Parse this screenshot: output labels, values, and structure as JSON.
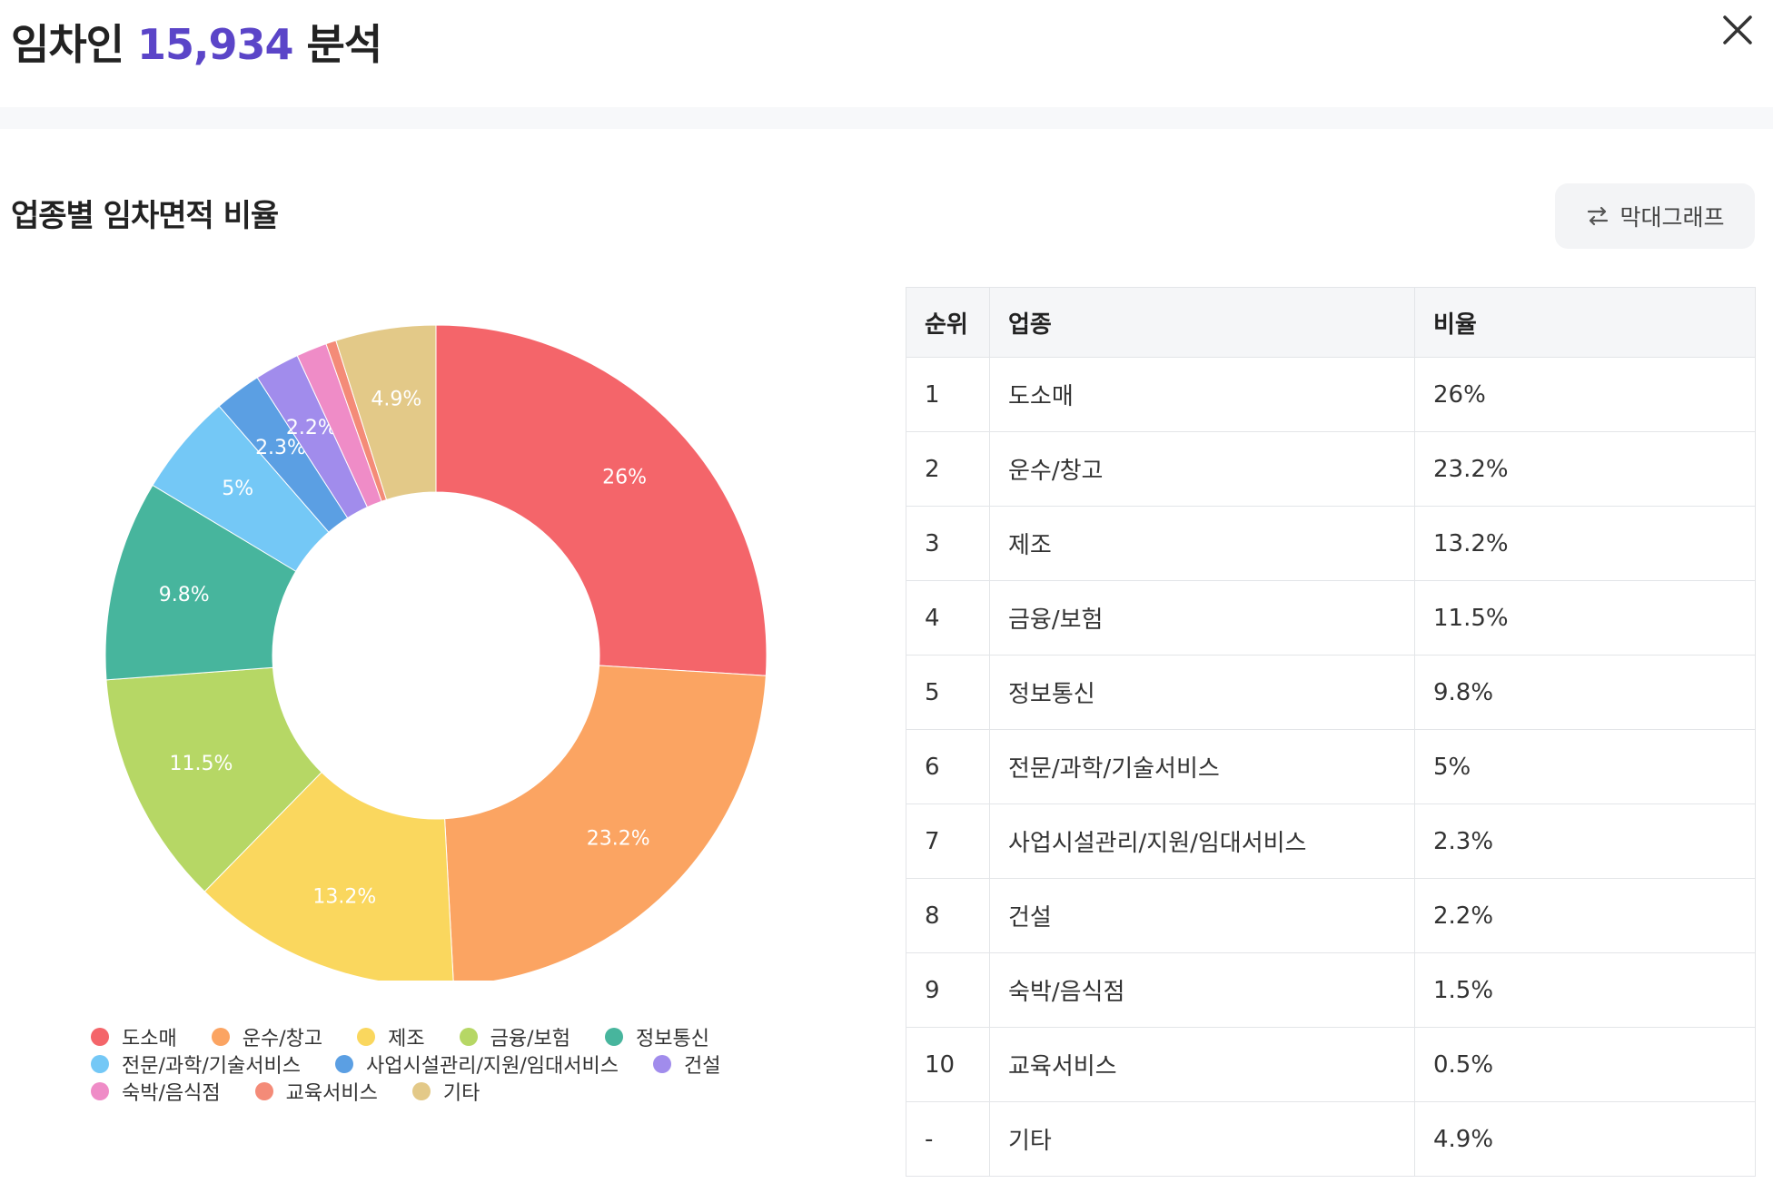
{
  "header": {
    "title_prefix": "임차인",
    "title_count": "15,934",
    "title_suffix": "분석"
  },
  "section": {
    "title": "업종별 임차면적 비율",
    "toggle_label": "막대그래프"
  },
  "colors": {
    "accent": "#5b45c8"
  },
  "chart_data": {
    "type": "pie",
    "donut": true,
    "title": "",
    "legend_position": "bottom",
    "categories": [
      "도소매",
      "운수/창고",
      "제조",
      "금융/보험",
      "정보통신",
      "전문/과학/기술서비스",
      "사업시설관리/지원/임대서비스",
      "건설",
      "숙박/음식점",
      "교육서비스",
      "기타"
    ],
    "values": [
      26,
      23.2,
      13.2,
      11.5,
      9.8,
      5,
      2.3,
      2.2,
      1.5,
      0.5,
      4.9
    ],
    "labels": [
      "26%",
      "23.2%",
      "13.2%",
      "11.5%",
      "9.8%",
      "5%",
      "2.3%",
      "2.2%",
      "",
      "",
      "4.9%"
    ],
    "colors": [
      "#f4656a",
      "#fba462",
      "#fad75e",
      "#b6d765",
      "#47b59d",
      "#74c8f6",
      "#5b9fe3",
      "#a18cec",
      "#ef8cc7",
      "#f48b78",
      "#e3c988"
    ]
  },
  "table": {
    "headers": [
      "순위",
      "업종",
      "비율"
    ],
    "rows": [
      [
        "1",
        "도소매",
        "26%"
      ],
      [
        "2",
        "운수/창고",
        "23.2%"
      ],
      [
        "3",
        "제조",
        "13.2%"
      ],
      [
        "4",
        "금융/보험",
        "11.5%"
      ],
      [
        "5",
        "정보통신",
        "9.8%"
      ],
      [
        "6",
        "전문/과학/기술서비스",
        "5%"
      ],
      [
        "7",
        "사업시설관리/지원/임대서비스",
        "2.3%"
      ],
      [
        "8",
        "건설",
        "2.2%"
      ],
      [
        "9",
        "숙박/음식점",
        "1.5%"
      ],
      [
        "10",
        "교육서비스",
        "0.5%"
      ],
      [
        "-",
        "기타",
        "4.9%"
      ]
    ]
  }
}
